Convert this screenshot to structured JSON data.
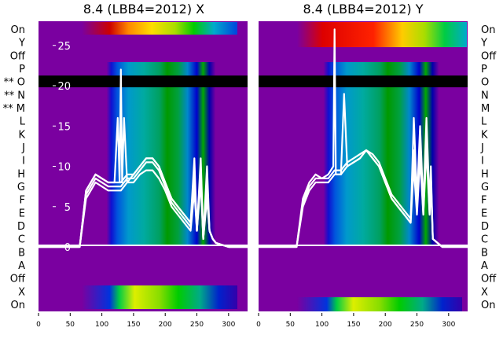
{
  "chart_data": [
    {
      "type": "heatmap",
      "title": "8.4 (LBB4=2012) X",
      "row_labels_left": [
        "On",
        "Y",
        "Off",
        "P",
        "** O",
        "** N",
        "** M",
        "L",
        "K",
        "J",
        "I",
        "H",
        "G",
        "F",
        "E",
        "D",
        "C",
        "B",
        "A",
        "Off",
        "X",
        "On"
      ],
      "x_ticks": [
        0,
        50,
        100,
        150,
        200,
        250,
        300
      ],
      "xlim": [
        0,
        330
      ],
      "overlay_y_ticks": [
        0,
        5,
        10,
        15,
        20,
        25
      ],
      "overlay_ylim": [
        -8,
        28
      ],
      "colormap": "nipy_spectral",
      "overlay_line_color": "#ffffff",
      "series": [
        {
          "x": [
            0,
            55,
            65,
            75,
            90,
            110,
            130,
            140,
            150,
            160,
            170,
            180,
            190,
            200,
            210,
            220,
            230,
            240,
            246,
            250,
            256,
            260,
            266,
            270,
            275,
            280,
            300,
            330
          ],
          "y": [
            0,
            0,
            0,
            7,
            9,
            8,
            8,
            9,
            9,
            10,
            11,
            11,
            10,
            8,
            6,
            5,
            4,
            3,
            8,
            2,
            8,
            1,
            7,
            2,
            1,
            0.5,
            0,
            0
          ]
        },
        {
          "x": [
            0,
            55,
            65,
            75,
            90,
            110,
            130,
            140,
            150,
            160,
            170,
            180,
            190,
            200,
            210,
            220,
            230,
            240,
            246,
            250,
            256,
            260,
            266,
            270,
            275,
            280,
            300,
            330
          ],
          "y": [
            0,
            0,
            0,
            6.5,
            8.5,
            7.5,
            7.5,
            8.5,
            8.5,
            9.5,
            10.5,
            10.5,
            9.5,
            7.5,
            5.5,
            4.5,
            3.5,
            2.5,
            9,
            2,
            9,
            1,
            8,
            2,
            1,
            0.5,
            0,
            0
          ]
        },
        {
          "x": [
            0,
            55,
            65,
            75,
            90,
            110,
            130,
            140,
            150,
            160,
            170,
            180,
            190,
            200,
            210,
            220,
            230,
            240,
            246,
            250,
            256,
            260,
            266,
            270,
            275,
            280,
            300,
            330
          ],
          "y": [
            0,
            0,
            0,
            6,
            8,
            7,
            7,
            8,
            8,
            9,
            9.5,
            9.5,
            8.5,
            7,
            5,
            4,
            3,
            2,
            7,
            2,
            10,
            1,
            6,
            2,
            1,
            0.5,
            0,
            0
          ]
        },
        {
          "x": [
            0,
            55,
            65,
            75,
            90,
            110,
            120,
            125,
            128,
            130,
            132,
            135,
            140,
            150,
            160,
            170,
            180,
            190,
            200,
            210,
            220,
            230,
            240,
            246,
            250,
            256,
            260,
            266,
            270,
            275,
            280,
            300,
            330
          ],
          "y": [
            0,
            0,
            0,
            7,
            9,
            8,
            8,
            16,
            8,
            22,
            8,
            16,
            8,
            9,
            10,
            11,
            11,
            10,
            8,
            6,
            5,
            4,
            3,
            11,
            2,
            11,
            1,
            10,
            2,
            1,
            0.5,
            0,
            0
          ]
        }
      ]
    },
    {
      "type": "heatmap",
      "title": "8.4 (LBB4=2012) Y",
      "row_labels_right": [
        "On",
        "Y",
        "Off",
        "P",
        "O",
        "N",
        "M",
        "L",
        "K",
        "J",
        "I",
        "H",
        "G",
        "F",
        "E",
        "D",
        "C",
        "B",
        "A",
        "Off",
        "X",
        "On"
      ],
      "x_ticks": [
        0,
        50,
        100,
        150,
        200,
        250,
        300
      ],
      "xlim": [
        0,
        330
      ],
      "overlay_ylim": [
        -8,
        28
      ],
      "colormap": "nipy_spectral",
      "overlay_line_color": "#ffffff",
      "series": [
        {
          "x": [
            0,
            50,
            60,
            70,
            80,
            90,
            100,
            110,
            120,
            130,
            140,
            150,
            160,
            170,
            180,
            190,
            200,
            210,
            220,
            230,
            240,
            245,
            250,
            255,
            260,
            265,
            270,
            272,
            275,
            290,
            330
          ],
          "y": [
            0,
            0,
            0,
            5,
            7,
            8,
            8,
            8,
            9,
            9,
            10,
            10.5,
            11,
            12,
            11,
            10,
            8,
            6,
            5,
            4,
            3,
            16,
            6,
            15,
            5,
            16,
            5,
            10,
            1,
            0,
            0
          ]
        },
        {
          "x": [
            0,
            50,
            60,
            70,
            80,
            90,
            100,
            110,
            120,
            130,
            140,
            150,
            160,
            170,
            180,
            190,
            200,
            210,
            220,
            230,
            240,
            245,
            250,
            255,
            260,
            265,
            270,
            272,
            275,
            290,
            330
          ],
          "y": [
            0,
            0,
            0,
            5.5,
            7.5,
            8.5,
            8.5,
            8.5,
            9.5,
            9.5,
            10.5,
            11,
            11.5,
            12,
            11.5,
            10.5,
            8.5,
            6.5,
            5.5,
            4.5,
            3.5,
            12,
            5,
            13,
            4,
            14,
            4,
            9,
            1,
            0,
            0
          ]
        },
        {
          "x": [
            0,
            50,
            60,
            70,
            80,
            90,
            100,
            110,
            118,
            120,
            122,
            125,
            130,
            135,
            140,
            150,
            160,
            170,
            180,
            190,
            200,
            210,
            220,
            230,
            240,
            245,
            250,
            255,
            260,
            265,
            270,
            272,
            275,
            290,
            330
          ],
          "y": [
            0,
            0,
            0,
            6,
            8,
            9,
            8.5,
            9,
            10,
            27,
            9,
            9,
            9,
            19,
            10,
            10.5,
            11,
            12,
            11,
            10,
            8,
            6,
            5,
            4,
            3,
            10,
            4,
            11,
            4,
            12,
            4,
            8,
            1,
            0,
            0
          ]
        }
      ]
    }
  ]
}
